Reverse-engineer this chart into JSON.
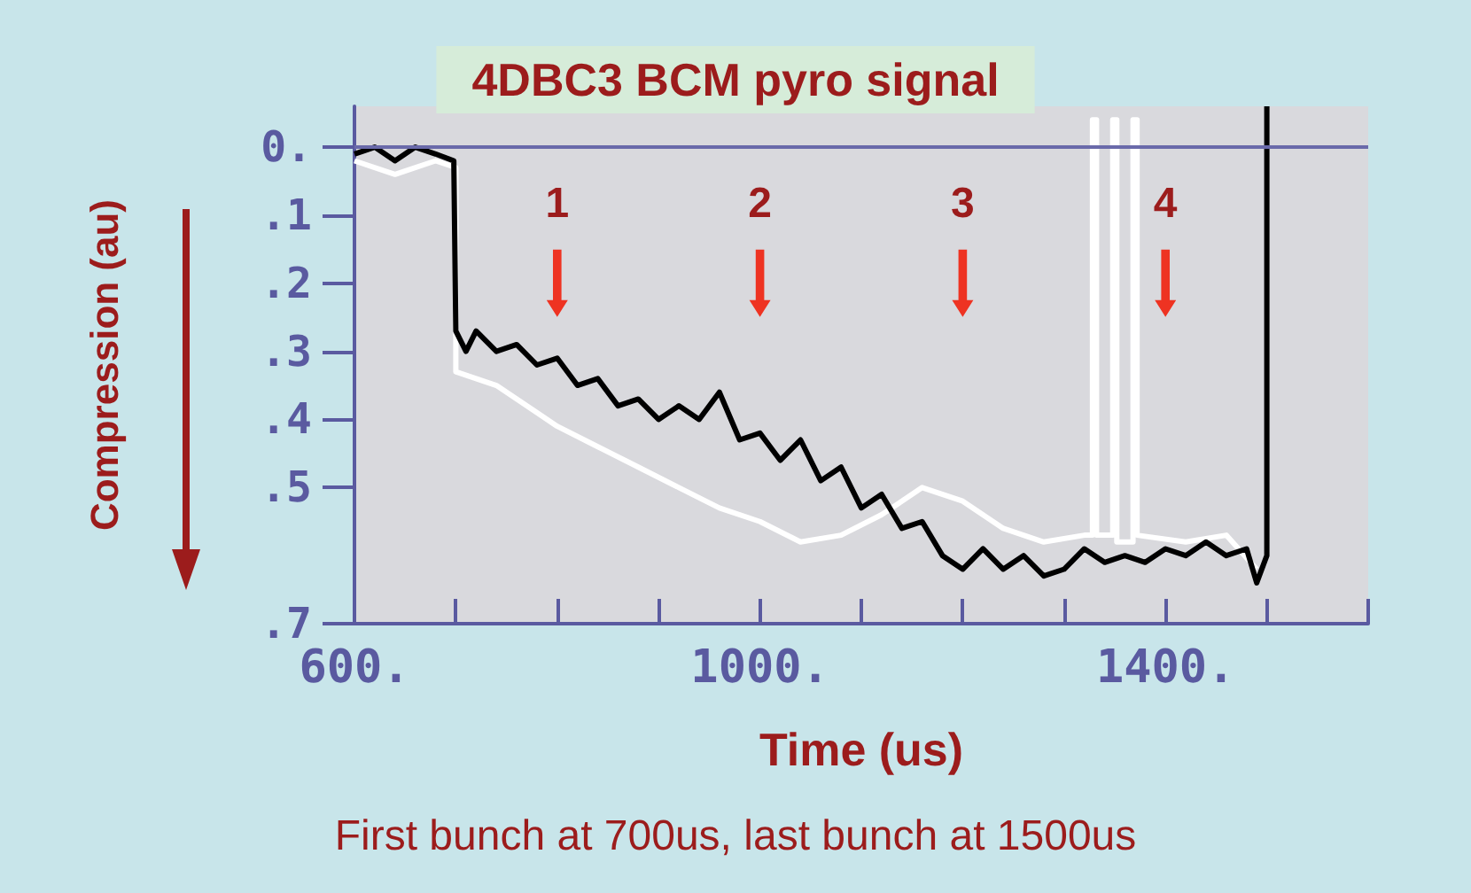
{
  "chart_data": {
    "type": "line",
    "title": "4DBC3 BCM pyro signal",
    "xlabel": "Time (us)",
    "ylabel": "Compression (au)",
    "xlim": [
      600,
      1600
    ],
    "xticks": [
      {
        "value": 600,
        "label": "600."
      },
      {
        "value": 700,
        "label": null
      },
      {
        "value": 800,
        "label": null
      },
      {
        "value": 900,
        "label": null
      },
      {
        "value": 1000,
        "label": "1000."
      },
      {
        "value": 1100,
        "label": null
      },
      {
        "value": 1200,
        "label": null
      },
      {
        "value": 1300,
        "label": null
      },
      {
        "value": 1400,
        "label": "1400."
      },
      {
        "value": 1500,
        "label": null
      },
      {
        "value": 1600,
        "label": null
      }
    ],
    "ylim": [
      0.7,
      -0.06
    ],
    "yticks": [
      {
        "value": 0,
        "label": "0."
      },
      {
        "value": 0.1,
        "label": ".1"
      },
      {
        "value": 0.2,
        "label": ".2"
      },
      {
        "value": 0.3,
        "label": ".3"
      },
      {
        "value": 0.4,
        "label": ".4"
      },
      {
        "value": 0.5,
        "label": ".5"
      },
      {
        "value": 0.7,
        "label": ".7"
      }
    ],
    "ref_lines": [
      {
        "axis": "y",
        "value": 0,
        "color": "#6a6aaa"
      }
    ],
    "series": [
      {
        "color": "#ffffff",
        "x": [
          600,
          640,
          680,
          700,
          700,
          740,
          780,
          800,
          840,
          880,
          920,
          960,
          1000,
          1040,
          1080,
          1120,
          1160,
          1200,
          1240,
          1280,
          1320,
          1328,
          1328,
          1332,
          1332,
          1348,
          1348,
          1352,
          1352,
          1368,
          1368,
          1372,
          1372,
          1420,
          1460,
          1490
        ],
        "values": [
          0.02,
          0.04,
          0.02,
          0.03,
          0.33,
          0.35,
          0.39,
          0.41,
          0.44,
          0.47,
          0.5,
          0.53,
          0.55,
          0.58,
          0.57,
          0.54,
          0.5,
          0.52,
          0.56,
          0.58,
          0.57,
          0.57,
          -0.04,
          -0.04,
          0.57,
          0.57,
          -0.04,
          -0.04,
          0.58,
          0.58,
          -0.04,
          -0.04,
          0.57,
          0.58,
          0.57,
          0.62
        ]
      },
      {
        "color": "#000000",
        "x": [
          600,
          620,
          640,
          660,
          680,
          698,
          700,
          710,
          720,
          740,
          760,
          780,
          800,
          820,
          840,
          860,
          880,
          900,
          920,
          940,
          960,
          980,
          1000,
          1020,
          1040,
          1060,
          1080,
          1100,
          1120,
          1140,
          1160,
          1180,
          1200,
          1220,
          1240,
          1260,
          1280,
          1300,
          1320,
          1340,
          1360,
          1380,
          1400,
          1420,
          1440,
          1460,
          1480,
          1490,
          1500,
          1500
        ],
        "values": [
          0.01,
          0,
          0.02,
          0,
          0.01,
          0.02,
          0.27,
          0.3,
          0.27,
          0.3,
          0.29,
          0.32,
          0.31,
          0.35,
          0.34,
          0.38,
          0.37,
          0.4,
          0.38,
          0.4,
          0.36,
          0.43,
          0.42,
          0.46,
          0.43,
          0.49,
          0.47,
          0.53,
          0.51,
          0.56,
          0.55,
          0.6,
          0.62,
          0.59,
          0.62,
          0.6,
          0.63,
          0.62,
          0.59,
          0.61,
          0.6,
          0.61,
          0.59,
          0.6,
          0.58,
          0.6,
          0.59,
          0.64,
          0.6,
          -0.06
        ]
      }
    ],
    "annotations": [
      {
        "text": "1",
        "x": 800,
        "y": 0.2
      },
      {
        "text": "2",
        "x": 1000,
        "y": 0.2
      },
      {
        "text": "3",
        "x": 1200,
        "y": 0.2
      },
      {
        "text": "4",
        "x": 1400,
        "y": 0.2
      },
      "First bunch at 700us, last bunch at 1500us"
    ]
  }
}
